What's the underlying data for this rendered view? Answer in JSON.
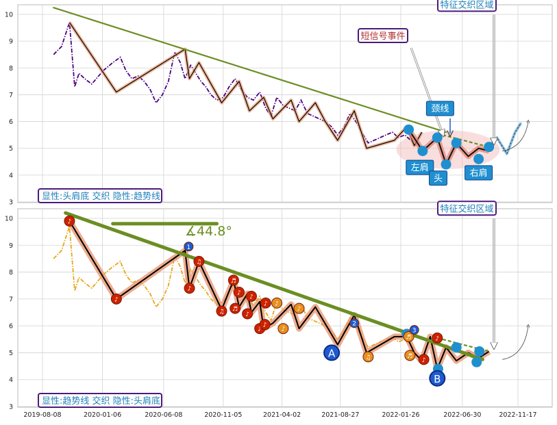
{
  "chart_data": [
    {
      "type": "line",
      "panel": "top",
      "ylim": [
        3,
        10.4
      ],
      "yticks": [
        3,
        4,
        5,
        6,
        7,
        8,
        9,
        10
      ],
      "grid": true,
      "xtick_labels": [
        "2019-08-08",
        "2020-01-06",
        "2020-06-08",
        "2020-11-05",
        "2021-04-02",
        "2021-08-27",
        "2022-01-26",
        "2022-06-30",
        "2022-11-17"
      ],
      "series": [
        {
          "role": "price",
          "color": "#4b0082",
          "style": "dash-dot",
          "x": [
            "2019-09-05",
            "2019-09-25",
            "2019-10-15",
            "2019-10-28",
            "2019-11-08",
            "2019-11-22",
            "2019-12-10",
            "2020-01-08",
            "2020-02-01",
            "2020-02-20",
            "2020-03-05",
            "2020-03-20",
            "2020-04-05",
            "2020-04-20",
            "2020-05-05",
            "2020-05-20",
            "2020-06-05",
            "2020-06-20",
            "2020-07-06",
            "2020-07-20",
            "2020-08-01",
            "2020-08-15",
            "2020-08-28",
            "2020-09-10",
            "2020-09-22",
            "2020-10-05",
            "2020-10-20",
            "2020-11-05",
            "2020-11-20",
            "2020-12-05",
            "2020-12-20",
            "2021-01-05",
            "2021-01-20",
            "2021-02-05",
            "2021-02-20",
            "2021-03-05",
            "2021-03-20",
            "2021-04-05",
            "2021-04-20",
            "2021-05-05",
            "2021-05-20",
            "2021-06-05",
            "2021-06-20",
            "2021-07-05",
            "2021-07-20",
            "2021-08-05",
            "2021-08-20",
            "2021-09-05",
            "2021-09-20",
            "2021-10-05",
            "2021-10-20",
            "2021-11-05",
            "2021-11-20",
            "2021-12-05",
            "2021-12-20",
            "2022-01-05",
            "2022-01-20",
            "2022-02-05",
            "2022-02-20",
            "2022-03-05"
          ],
          "y": [
            8.5,
            8.8,
            9.7,
            7.3,
            7.8,
            7.6,
            7.4,
            7.9,
            8.2,
            8.4,
            7.9,
            7.6,
            7.7,
            7.5,
            7.2,
            6.7,
            7.0,
            7.5,
            8.6,
            8.2,
            7.6,
            8.1,
            7.8,
            7.5,
            7.3,
            7.0,
            6.8,
            6.9,
            7.3,
            7.6,
            7.2,
            6.9,
            6.8,
            7.1,
            6.5,
            6.2,
            6.9,
            6.6,
            6.5,
            6.4,
            6.8,
            6.3,
            6.2,
            6.1,
            6.0,
            5.8,
            5.5,
            5.8,
            6.3,
            6.0,
            5.6,
            5.2,
            5.3,
            5.4,
            5.5,
            5.6,
            5.4,
            5.5,
            5.3,
            5.1
          ]
        },
        {
          "role": "zigzag",
          "color": "#000000",
          "x": [
            "2019-10-15",
            "2020-02-10",
            "2020-08-01",
            "2020-08-12",
            "2020-09-05",
            "2020-11-01",
            "2020-12-15",
            "2021-01-10",
            "2021-02-15",
            "2021-03-10",
            "2021-04-25",
            "2021-05-15",
            "2021-06-25",
            "2021-07-20",
            "2021-08-20",
            "2021-10-01",
            "2021-11-01",
            "2022-01-10",
            "2022-02-10",
            "2022-03-01",
            "2022-03-20"
          ],
          "y": [
            9.7,
            7.1,
            8.7,
            7.6,
            8.2,
            6.7,
            7.5,
            6.4,
            6.9,
            6.1,
            6.8,
            6.0,
            6.7,
            6.0,
            5.3,
            6.4,
            5.0,
            5.3,
            5.8,
            5.1,
            5.6
          ]
        }
      ],
      "pattern_line": {
        "x": [
          "2022-02-15",
          "2022-03-22",
          "2022-04-28",
          "2022-05-20",
          "2022-06-15",
          "2022-07-15",
          "2022-08-10",
          "2022-09-05"
        ],
        "y": [
          5.7,
          4.9,
          5.4,
          4.4,
          5.2,
          4.7,
          5.0,
          4.9
        ],
        "color": "#d62728"
      },
      "key_points": {
        "x": [
          "2022-02-15",
          "2022-03-22",
          "2022-04-28",
          "2022-05-20",
          "2022-06-15",
          "2022-08-10",
          "2022-09-05"
        ],
        "y": [
          5.7,
          4.9,
          5.4,
          4.4,
          5.2,
          4.6,
          5.05
        ],
        "color": "#1e90d0"
      },
      "trend_line": {
        "x": [
          "2019-09-05",
          "2022-05-20"
        ],
        "y": [
          10.25,
          5.6
        ],
        "color": "#6b8e23"
      },
      "neckline": {
        "x": [
          "2022-04-28",
          "2022-09-05"
        ],
        "y": [
          5.55,
          5.05
        ],
        "color": "#6b8e23"
      },
      "projection": {
        "x": [
          "2022-09-05",
          "2022-09-25",
          "2022-10-20",
          "2022-11-10",
          "2022-11-25"
        ],
        "y": [
          5.05,
          5.4,
          4.8,
          5.6,
          5.95
        ],
        "color": "#1e90d0"
      },
      "ellipse": {
        "cx": "2022-05-25",
        "cy": 4.95,
        "rx_days": 130,
        "ry": 0.72,
        "color": "#f2b6b6"
      },
      "callouts": [
        {
          "text": "特征交织区域",
          "x": "2022-08-20",
          "y": 10.4
        },
        {
          "text": "短信号事件",
          "x": "2021-12-25",
          "y": 9.5
        },
        {
          "text": "颈线",
          "x": "2022-05-05",
          "y": 6.5
        },
        {
          "text": "左肩",
          "x": "2022-03-15",
          "y": 4.3
        },
        {
          "text": "头",
          "x": "2022-04-30",
          "y": 3.9
        },
        {
          "text": "右肩",
          "x": "2022-08-10",
          "y": 4.1
        }
      ],
      "legend_text": "显性:头肩底 交织 隐性:趋势线"
    },
    {
      "type": "line",
      "panel": "bottom",
      "ylim": [
        3,
        10.4
      ],
      "yticks": [
        3,
        4,
        5,
        6,
        7,
        8,
        9,
        10
      ],
      "grid": true,
      "xtick_labels": [
        "2019-08-08",
        "2020-01-06",
        "2020-06-08",
        "2020-11-05",
        "2021-04-02",
        "2021-08-27",
        "2022-01-26",
        "2022-06-30",
        "2022-11-17"
      ],
      "series": [
        {
          "role": "price",
          "color": "#e6a817",
          "style": "dash-dot",
          "x": [
            "2019-09-05",
            "2019-09-25",
            "2019-10-15",
            "2019-10-28",
            "2019-11-08",
            "2019-11-22",
            "2019-12-10",
            "2020-01-08",
            "2020-02-01",
            "2020-02-20",
            "2020-03-05",
            "2020-03-20",
            "2020-04-05",
            "2020-04-20",
            "2020-05-05",
            "2020-05-20",
            "2020-06-05",
            "2020-06-20",
            "2020-07-06",
            "2020-07-20",
            "2020-08-01",
            "2020-08-15",
            "2020-08-28",
            "2020-09-10",
            "2020-09-22",
            "2020-10-05",
            "2020-10-20",
            "2020-11-05",
            "2020-11-20",
            "2020-12-05",
            "2020-12-20",
            "2021-01-05",
            "2021-01-20",
            "2021-02-05",
            "2021-02-20",
            "2021-03-05",
            "2021-03-20",
            "2021-04-05",
            "2021-04-20",
            "2021-05-05",
            "2021-05-20",
            "2021-06-05",
            "2021-06-20",
            "2021-07-05",
            "2021-07-20",
            "2021-08-05",
            "2021-08-20",
            "2021-09-05",
            "2021-09-20",
            "2021-10-05",
            "2021-10-20",
            "2021-11-05",
            "2021-11-20",
            "2021-12-05",
            "2021-12-20",
            "2022-01-05",
            "2022-01-20",
            "2022-02-05",
            "2022-02-20",
            "2022-03-05"
          ],
          "y": [
            8.5,
            8.8,
            9.7,
            7.3,
            7.8,
            7.6,
            7.4,
            7.9,
            8.2,
            8.4,
            7.9,
            7.6,
            7.7,
            7.5,
            7.2,
            6.7,
            7.0,
            7.5,
            8.6,
            8.2,
            7.6,
            8.1,
            7.8,
            7.5,
            7.3,
            7.0,
            6.8,
            6.9,
            7.3,
            7.6,
            7.2,
            6.9,
            6.8,
            7.1,
            6.5,
            6.2,
            6.9,
            6.6,
            6.5,
            6.4,
            6.8,
            6.3,
            6.2,
            6.1,
            6.0,
            5.8,
            5.5,
            5.8,
            6.3,
            6.0,
            5.6,
            5.2,
            5.3,
            5.4,
            5.5,
            5.6,
            5.4,
            5.5,
            5.3,
            5.1
          ]
        },
        {
          "role": "zigzag",
          "color": "#000000",
          "x": [
            "2019-10-15",
            "2020-02-10",
            "2020-08-01",
            "2020-08-12",
            "2020-09-05",
            "2020-11-01",
            "2020-12-01",
            "2020-12-15",
            "2021-01-05",
            "2021-01-15",
            "2021-02-05",
            "2021-02-15",
            "2021-03-10",
            "2021-04-25",
            "2021-05-15",
            "2021-06-25",
            "2021-08-20",
            "2021-10-01",
            "2021-11-01",
            "2022-01-10",
            "2022-02-10",
            "2022-03-01",
            "2022-03-20",
            "2022-04-10",
            "2022-04-28",
            "2022-05-20",
            "2022-06-15",
            "2022-07-15",
            "2022-08-10",
            "2022-09-05"
          ],
          "y": [
            9.9,
            7.0,
            8.8,
            7.4,
            8.4,
            6.6,
            7.7,
            6.7,
            7.2,
            6.5,
            6.9,
            5.9,
            6.1,
            6.8,
            5.9,
            6.7,
            5.3,
            6.4,
            5.0,
            5.6,
            5.6,
            5.0,
            4.7,
            5.6,
            4.4,
            5.2,
            4.7,
            5.0,
            4.8,
            5.05
          ]
        }
      ],
      "markers": [
        {
          "x": "2019-10-15",
          "y": 9.9,
          "color": "#cc2200",
          "text": "♪"
        },
        {
          "x": "2020-02-10",
          "y": 7.0,
          "color": "#cc2200",
          "text": "♪"
        },
        {
          "x": "2020-08-10",
          "y": 8.95,
          "color": "#1e5bd0",
          "text": "1"
        },
        {
          "x": "2020-08-12",
          "y": 7.4,
          "color": "#cc2200",
          "text": "♪"
        },
        {
          "x": "2020-09-05",
          "y": 8.4,
          "color": "#cc2200",
          "text": "♫"
        },
        {
          "x": "2020-11-01",
          "y": 6.55,
          "color": "#cc2200",
          "text": "♫"
        },
        {
          "x": "2020-12-01",
          "y": 7.7,
          "color": "#cc2200",
          "text": "♬"
        },
        {
          "x": "2020-12-05",
          "y": 6.65,
          "color": "#cc2200",
          "text": "♬"
        },
        {
          "x": "2020-12-15",
          "y": 7.25,
          "color": "#cc2200",
          "text": "♪"
        },
        {
          "x": "2021-01-05",
          "y": 6.45,
          "color": "#cc2200",
          "text": "♪"
        },
        {
          "x": "2021-01-15",
          "y": 7.1,
          "color": "#cc2200",
          "text": "♪"
        },
        {
          "x": "2021-02-05",
          "y": 5.9,
          "color": "#cc2200",
          "text": "♪"
        },
        {
          "x": "2021-02-18",
          "y": 6.05,
          "color": "#cc2200",
          "text": "♪"
        },
        {
          "x": "2021-02-20",
          "y": 6.85,
          "color": "#cc2200",
          "text": "♪"
        },
        {
          "x": "2021-03-20",
          "y": 6.85,
          "color": "#e69020",
          "text": "♪"
        },
        {
          "x": "2021-04-05",
          "y": 5.9,
          "color": "#e69020",
          "text": "♪"
        },
        {
          "x": "2021-05-15",
          "y": 6.65,
          "color": "#e69020",
          "text": "♪"
        },
        {
          "x": "2021-08-05",
          "y": 5.0,
          "color": "#1e5bd0",
          "text": "A",
          "large": true
        },
        {
          "x": "2021-10-01",
          "y": 6.1,
          "color": "#1e5bd0",
          "text": "2"
        },
        {
          "x": "2021-11-05",
          "y": 4.85,
          "color": "#e69020",
          "text": "♫"
        },
        {
          "x": "2022-02-10",
          "y": 5.7,
          "color": "#1e90d0",
          "text": ""
        },
        {
          "x": "2022-02-15",
          "y": 5.6,
          "color": "#e69020",
          "text": "♬"
        },
        {
          "x": "2022-02-18",
          "y": 4.9,
          "color": "#e69020",
          "text": "♬"
        },
        {
          "x": "2022-03-01",
          "y": 5.85,
          "color": "#1e5bd0",
          "text": "3"
        },
        {
          "x": "2022-03-25",
          "y": 4.75,
          "color": "#cc2200",
          "text": "♪"
        },
        {
          "x": "2022-04-28",
          "y": 5.55,
          "color": "#cc2200",
          "text": "♪"
        },
        {
          "x": "2022-04-30",
          "y": 4.4,
          "color": "#1e90d0",
          "text": ""
        },
        {
          "x": "2022-04-28",
          "y": 4.05,
          "color": "#1e5bd0",
          "text": "B",
          "large": true
        },
        {
          "x": "2022-06-15",
          "y": 5.2,
          "color": "#1e90d0",
          "text": ""
        },
        {
          "x": "2022-08-05",
          "y": 4.65,
          "color": "#1e90d0",
          "text": ""
        },
        {
          "x": "2022-08-12",
          "y": 5.05,
          "color": "#1e90d0",
          "text": ""
        }
      ],
      "trend_line": {
        "x": [
          "2019-10-05",
          "2022-08-20"
        ],
        "y": [
          10.2,
          4.75
        ],
        "color": "#6b8e23"
      },
      "horizontal_line": {
        "x": [
          "2020-02-01",
          "2020-10-20"
        ],
        "y": [
          9.8,
          9.8
        ],
        "color": "#6b8e23"
      },
      "neckline": {
        "x": [
          "2022-04-28",
          "2022-09-05"
        ],
        "y": [
          5.55,
          5.05
        ],
        "color": "#6b8e23"
      },
      "angle_label": "∡44.8°",
      "callouts": [
        {
          "text": "特征交织区域",
          "x": "2022-08-20",
          "y": 10.4
        }
      ],
      "legend_text": "显性:趋势线 交织 隐性:头肩底"
    }
  ]
}
